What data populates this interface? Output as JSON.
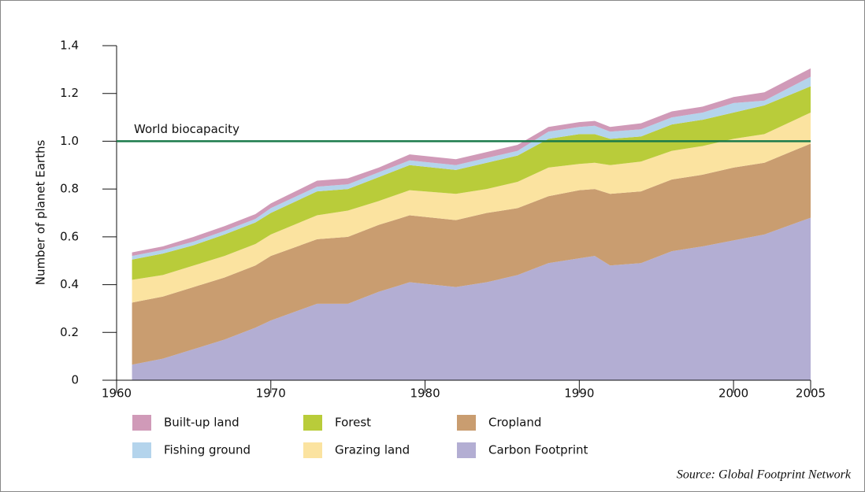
{
  "chart_data": {
    "type": "stacked_area",
    "ylabel": "Number of planet Earths",
    "source": "Source: Global Footprint Network",
    "reference_line": {
      "value": 1,
      "label": "World biocapacity",
      "color": "#1a7a4a"
    },
    "x": [
      1961,
      1963,
      1965,
      1967,
      1969,
      1970,
      1973,
      1975,
      1977,
      1979,
      1982,
      1984,
      1986,
      1988,
      1990,
      1991,
      1992,
      1994,
      1996,
      1998,
      2000,
      2002,
      2005
    ],
    "series": [
      {
        "name": "Carbon Footprint",
        "color": "#b3aed3",
        "values": [
          0.065,
          0.09,
          0.13,
          0.17,
          0.22,
          0.25,
          0.32,
          0.32,
          0.37,
          0.41,
          0.39,
          0.41,
          0.44,
          0.49,
          0.51,
          0.52,
          0.48,
          0.49,
          0.54,
          0.56,
          0.585,
          0.61,
          0.68
        ]
      },
      {
        "name": "Cropland",
        "color": "#c99d70",
        "values": [
          0.26,
          0.26,
          0.26,
          0.26,
          0.26,
          0.27,
          0.27,
          0.28,
          0.28,
          0.28,
          0.28,
          0.29,
          0.28,
          0.28,
          0.285,
          0.28,
          0.3,
          0.3,
          0.3,
          0.3,
          0.305,
          0.3,
          0.31
        ]
      },
      {
        "name": "Grazing land",
        "color": "#fbe3a0",
        "values": [
          0.095,
          0.09,
          0.09,
          0.09,
          0.09,
          0.09,
          0.1,
          0.11,
          0.1,
          0.105,
          0.11,
          0.1,
          0.11,
          0.12,
          0.11,
          0.11,
          0.12,
          0.125,
          0.12,
          0.12,
          0.12,
          0.12,
          0.13
        ]
      },
      {
        "name": "Forest",
        "color": "#b9cc3a",
        "values": [
          0.085,
          0.09,
          0.085,
          0.09,
          0.09,
          0.09,
          0.1,
          0.09,
          0.1,
          0.105,
          0.1,
          0.11,
          0.11,
          0.12,
          0.125,
          0.12,
          0.11,
          0.105,
          0.11,
          0.11,
          0.11,
          0.12,
          0.11
        ]
      },
      {
        "name": "Fishing ground",
        "color": "#b4d4ec",
        "values": [
          0.015,
          0.015,
          0.015,
          0.015,
          0.015,
          0.02,
          0.02,
          0.02,
          0.02,
          0.02,
          0.02,
          0.02,
          0.02,
          0.03,
          0.03,
          0.035,
          0.03,
          0.03,
          0.03,
          0.03,
          0.04,
          0.02,
          0.04
        ]
      },
      {
        "name": "Built-up land",
        "color": "#d09ab8",
        "values": [
          0.015,
          0.015,
          0.02,
          0.02,
          0.02,
          0.02,
          0.025,
          0.025,
          0.02,
          0.025,
          0.025,
          0.025,
          0.025,
          0.02,
          0.02,
          0.02,
          0.02,
          0.025,
          0.025,
          0.025,
          0.025,
          0.035,
          0.035
        ]
      }
    ],
    "xlim": [
      1960,
      2005
    ],
    "xticks": [
      1960,
      1970,
      1980,
      1990,
      2000,
      2005
    ],
    "ylim": [
      0,
      1.4
    ],
    "yticks": [
      0,
      0.2,
      0.4,
      0.6,
      0.8,
      {
        "value": 1,
        "label": "1.0"
      },
      1.2,
      1.4
    ]
  }
}
